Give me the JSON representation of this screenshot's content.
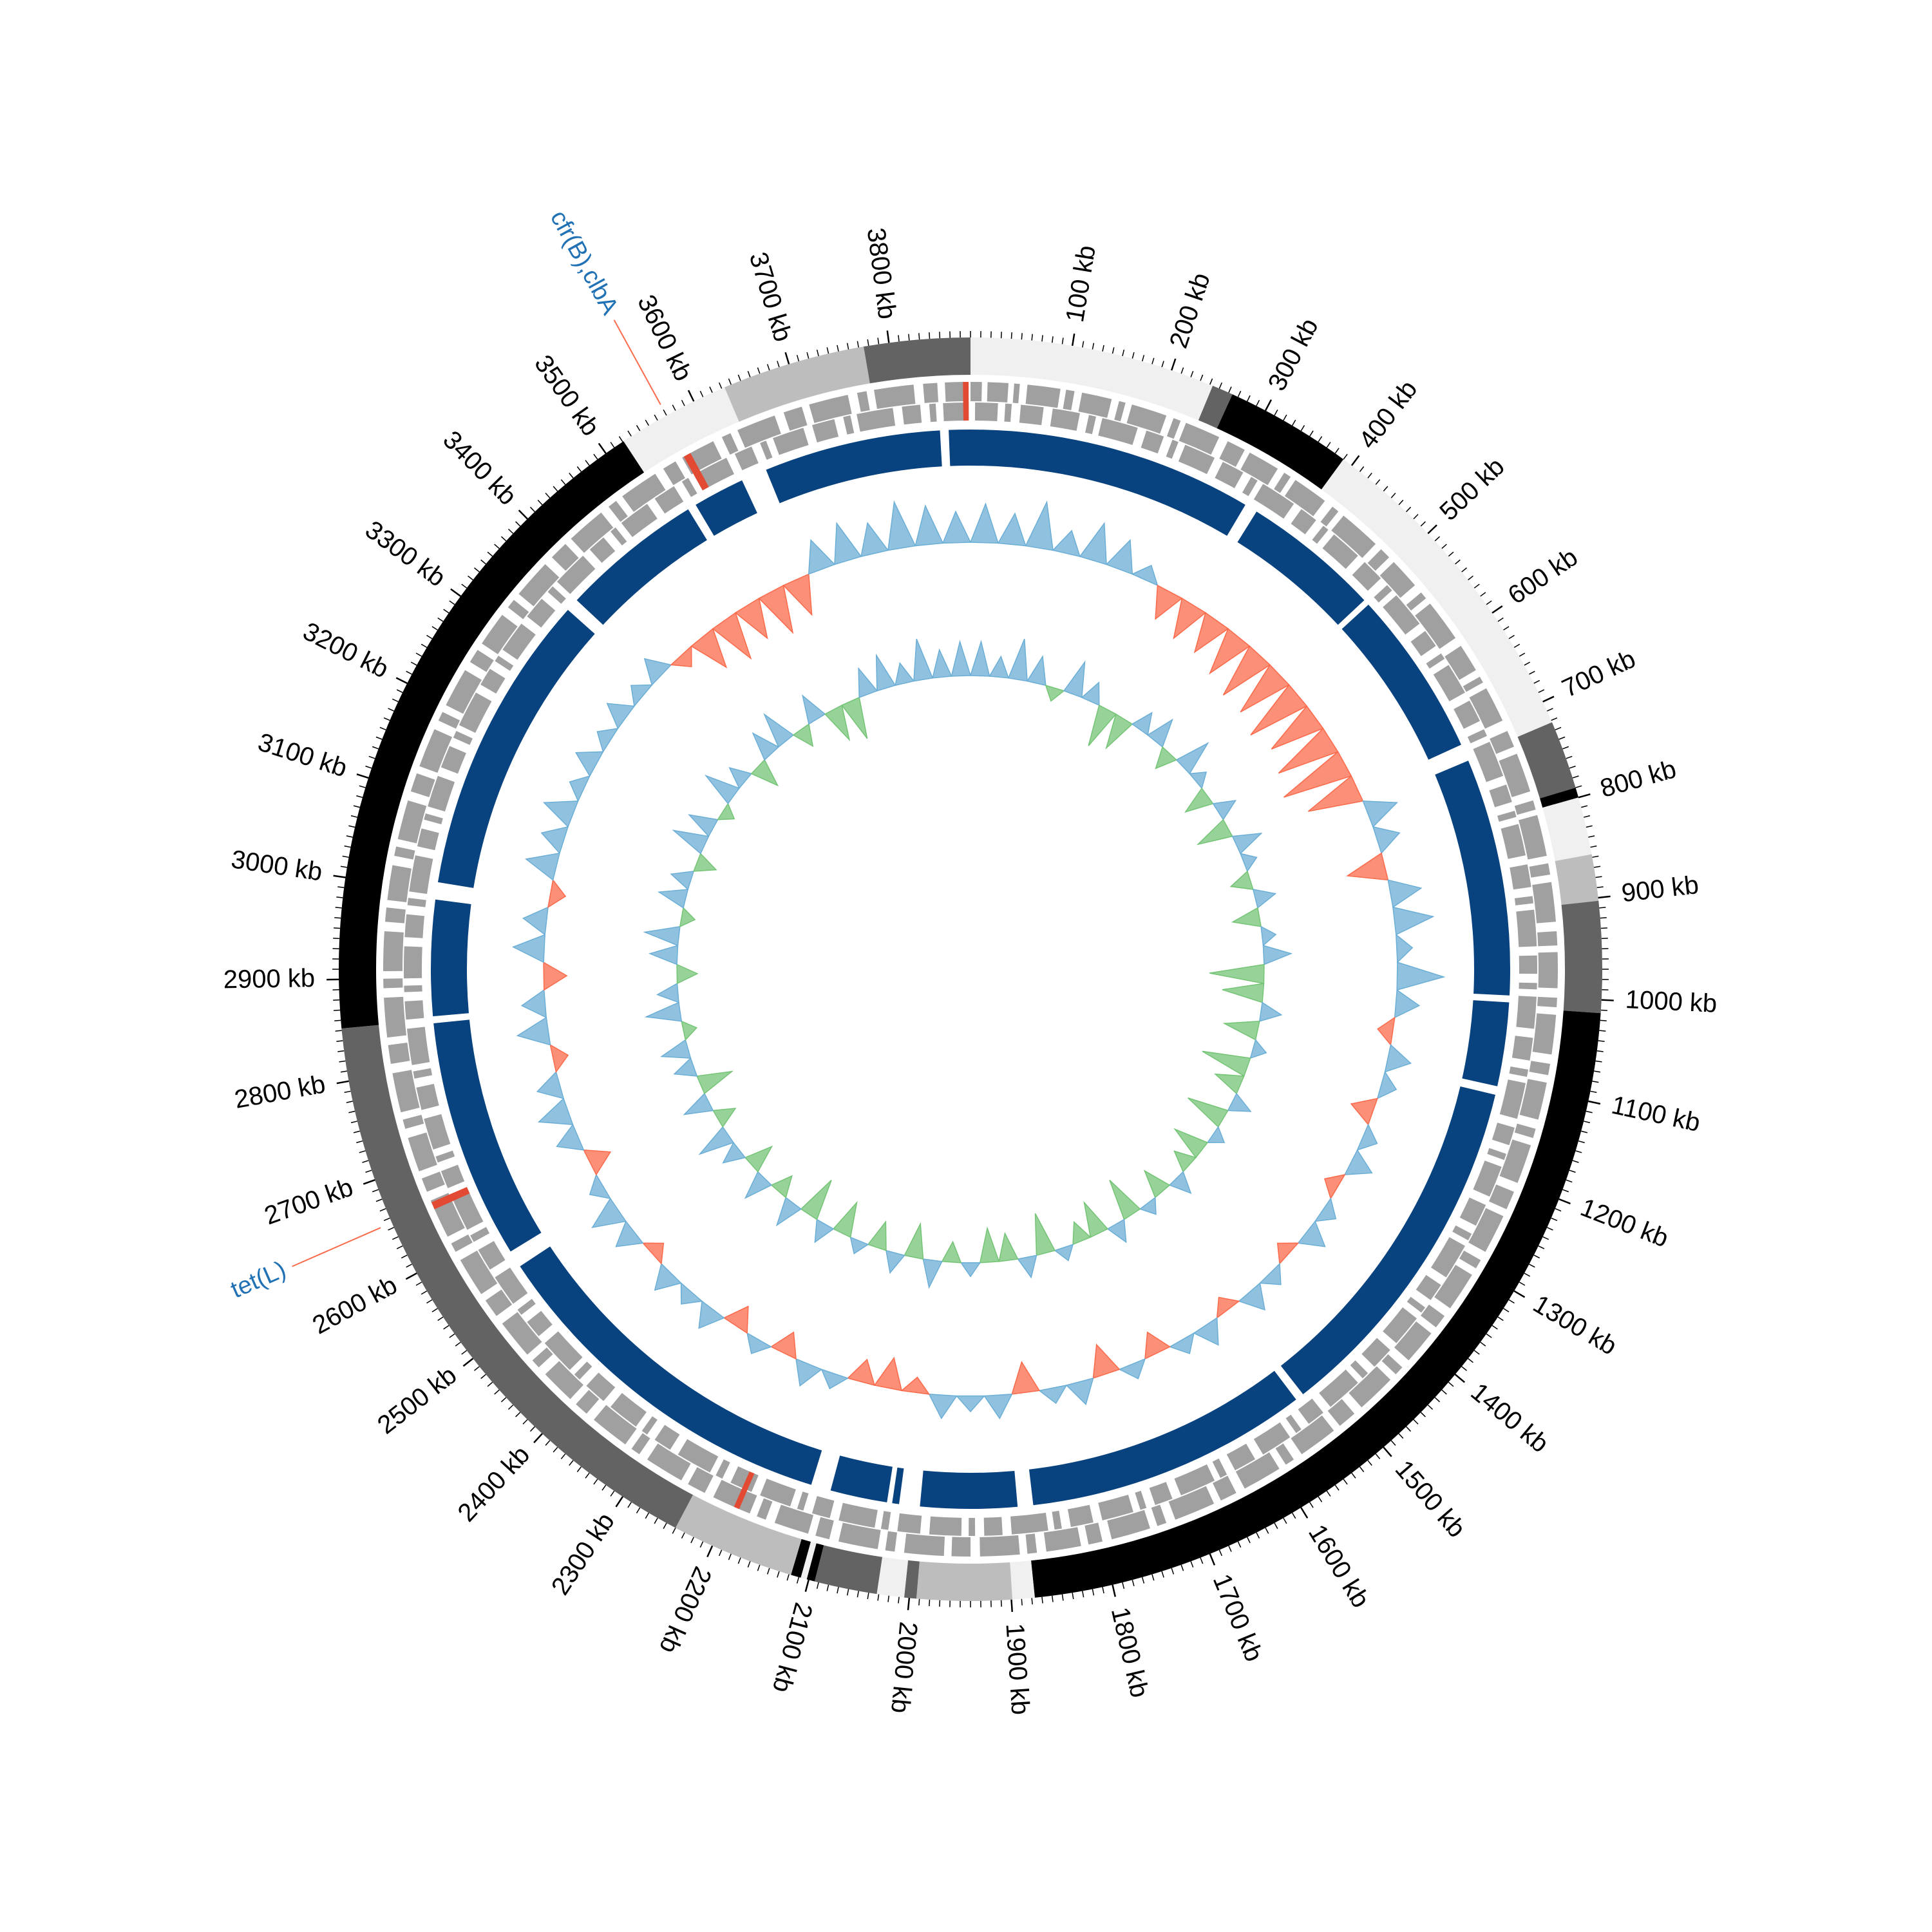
{
  "chart_data": {
    "type": "circular-genome",
    "xlim": [
      0,
      3880
    ],
    "ticks": [
      {
        "value": 100,
        "label": "100 kb"
      },
      {
        "value": 200,
        "label": "200 kb"
      },
      {
        "value": 300,
        "label": "300 kb"
      },
      {
        "value": 400,
        "label": "400 kb"
      },
      {
        "value": 500,
        "label": "500 kb"
      },
      {
        "value": 600,
        "label": "600 kb"
      },
      {
        "value": 700,
        "label": "700 kb"
      },
      {
        "value": 800,
        "label": "800 kb"
      },
      {
        "value": 900,
        "label": "900 kb"
      },
      {
        "value": 1000,
        "label": "1000 kb"
      },
      {
        "value": 1100,
        "label": "1100 kb"
      },
      {
        "value": 1200,
        "label": "1200 kb"
      },
      {
        "value": 1300,
        "label": "1300 kb"
      },
      {
        "value": 1400,
        "label": "1400 kb"
      },
      {
        "value": 1500,
        "label": "1500 kb"
      },
      {
        "value": 1600,
        "label": "1600 kb"
      },
      {
        "value": 1700,
        "label": "1700 kb"
      },
      {
        "value": 1800,
        "label": "1800 kb"
      },
      {
        "value": 1900,
        "label": "1900 kb"
      },
      {
        "value": 2000,
        "label": "2000 kb"
      },
      {
        "value": 2100,
        "label": "2100 kb"
      },
      {
        "value": 2200,
        "label": "2200 kb"
      },
      {
        "value": 2300,
        "label": "2300 kb"
      },
      {
        "value": 2400,
        "label": "2400 kb"
      },
      {
        "value": 2500,
        "label": "2500 kb"
      },
      {
        "value": 2600,
        "label": "2600 kb"
      },
      {
        "value": 2700,
        "label": "2700 kb"
      },
      {
        "value": 2800,
        "label": "2800 kb"
      },
      {
        "value": 2900,
        "label": "2900 kb"
      },
      {
        "value": 3000,
        "label": "3000 kb"
      },
      {
        "value": 3100,
        "label": "3100 kb"
      },
      {
        "value": 3200,
        "label": "3200 kb"
      },
      {
        "value": 3300,
        "label": "3300 kb"
      },
      {
        "value": 3400,
        "label": "3400 kb"
      },
      {
        "value": 3500,
        "label": "3500 kb"
      },
      {
        "value": 3600,
        "label": "3600 kb"
      },
      {
        "value": 3700,
        "label": "3700 kb"
      },
      {
        "value": 3800,
        "label": "3800 kb"
      }
    ],
    "minor_tick_step": 10,
    "contigs": [
      {
        "start": 0,
        "end": 243,
        "color": "#f0f0f0"
      },
      {
        "start": 243,
        "end": 264,
        "color": "#636363"
      },
      {
        "start": 264,
        "end": 390,
        "color": "#000000"
      },
      {
        "start": 390,
        "end": 722,
        "color": "#f0f0f0"
      },
      {
        "start": 722,
        "end": 790,
        "color": "#636363"
      },
      {
        "start": 790,
        "end": 800,
        "color": "#000000"
      },
      {
        "start": 800,
        "end": 857,
        "color": "#f0f0f0"
      },
      {
        "start": 857,
        "end": 903,
        "color": "#bdbdbd"
      },
      {
        "start": 903,
        "end": 1013,
        "color": "#636363"
      },
      {
        "start": 1013,
        "end": 1877,
        "color": "#000000"
      },
      {
        "start": 1877,
        "end": 1899,
        "color": "#f0f0f0"
      },
      {
        "start": 1899,
        "end": 1993,
        "color": "#bdbdbd"
      },
      {
        "start": 1993,
        "end": 2005,
        "color": "#636363"
      },
      {
        "start": 2005,
        "end": 2032,
        "color": "#f0f0f0"
      },
      {
        "start": 2032,
        "end": 2094,
        "color": "#636363"
      },
      {
        "start": 2094,
        "end": 2102,
        "color": "#000000"
      },
      {
        "start": 2102,
        "end": 2108,
        "color": "#f0f0f0"
      },
      {
        "start": 2108,
        "end": 2118,
        "color": "#000000"
      },
      {
        "start": 2118,
        "end": 2240,
        "color": "#bdbdbd"
      },
      {
        "start": 2240,
        "end": 2852,
        "color": "#636363"
      },
      {
        "start": 2852,
        "end": 3521,
        "color": "#000000"
      },
      {
        "start": 3521,
        "end": 3633,
        "color": "#f0f0f0"
      },
      {
        "start": 3633,
        "end": 3775,
        "color": "#bdbdbd"
      },
      {
        "start": 3775,
        "end": 3880,
        "color": "#636363"
      }
    ],
    "gene_color": "#a0a0a0",
    "genes_forward": [
      [
        0,
        12
      ],
      [
        18,
        40
      ],
      [
        46,
        52
      ],
      [
        60,
        95
      ],
      [
        101,
        110
      ],
      [
        118,
        150
      ],
      [
        158,
        165
      ],
      [
        172,
        210
      ],
      [
        218,
        226
      ],
      [
        232,
        270
      ],
      [
        280,
        300
      ],
      [
        306,
        340
      ],
      [
        348,
        356
      ],
      [
        362,
        400
      ],
      [
        410,
        418
      ],
      [
        425,
        470
      ],
      [
        478,
        490
      ],
      [
        497,
        530
      ],
      [
        540,
        548
      ],
      [
        555,
        600
      ],
      [
        610,
        640
      ],
      [
        648,
        655
      ],
      [
        662,
        700
      ],
      [
        712,
        730
      ],
      [
        738,
        780
      ],
      [
        790,
        800
      ],
      [
        806,
        850
      ],
      [
        858,
        870
      ],
      [
        878,
        920
      ],
      [
        930,
        945
      ],
      [
        952,
        990
      ],
      [
        1000,
        1010
      ],
      [
        1018,
        1060
      ],
      [
        1070,
        1082
      ],
      [
        1090,
        1130
      ],
      [
        1140,
        1150
      ],
      [
        1158,
        1200
      ],
      [
        1210,
        1230
      ],
      [
        1238,
        1280
      ],
      [
        1290,
        1300
      ],
      [
        1308,
        1350
      ],
      [
        1360,
        1375
      ],
      [
        1383,
        1420
      ],
      [
        1430,
        1440
      ],
      [
        1448,
        1490
      ],
      [
        1500,
        1520
      ],
      [
        1528,
        1570
      ],
      [
        1580,
        1590
      ],
      [
        1598,
        1640
      ],
      [
        1650,
        1668
      ],
      [
        1676,
        1720
      ],
      [
        1730,
        1740
      ],
      [
        1748,
        1790
      ],
      [
        1800,
        1815
      ],
      [
        1823,
        1860
      ],
      [
        1870,
        1880
      ],
      [
        1888,
        1930
      ],
      [
        1940,
        1960
      ],
      [
        1968,
        2010
      ],
      [
        2020,
        2030
      ],
      [
        2038,
        2080
      ],
      [
        2090,
        2105
      ],
      [
        2113,
        2150
      ],
      [
        2160,
        2170
      ],
      [
        2178,
        2220
      ],
      [
        2230,
        2250
      ],
      [
        2258,
        2300
      ],
      [
        2310,
        2320
      ],
      [
        2328,
        2370
      ],
      [
        2380,
        2395
      ],
      [
        2403,
        2440
      ],
      [
        2450,
        2460
      ],
      [
        2468,
        2510
      ],
      [
        2520,
        2540
      ],
      [
        2548,
        2590
      ],
      [
        2600,
        2610
      ],
      [
        2618,
        2660
      ],
      [
        2670,
        2685
      ],
      [
        2693,
        2730
      ],
      [
        2740,
        2750
      ],
      [
        2758,
        2800
      ],
      [
        2810,
        2830
      ],
      [
        2838,
        2880
      ],
      [
        2890,
        2900
      ],
      [
        2908,
        2950
      ],
      [
        2960,
        2975
      ],
      [
        2983,
        3020
      ],
      [
        3030,
        3040
      ],
      [
        3048,
        3090
      ],
      [
        3100,
        3120
      ],
      [
        3128,
        3170
      ],
      [
        3180,
        3190
      ],
      [
        3198,
        3240
      ],
      [
        3250,
        3265
      ],
      [
        3273,
        3310
      ],
      [
        3320,
        3330
      ],
      [
        3338,
        3380
      ],
      [
        3390,
        3410
      ],
      [
        3418,
        3460
      ],
      [
        3470,
        3480
      ],
      [
        3488,
        3530
      ],
      [
        3540,
        3555
      ],
      [
        3563,
        3600
      ],
      [
        3610,
        3620
      ],
      [
        3628,
        3670
      ],
      [
        3680,
        3700
      ],
      [
        3708,
        3750
      ],
      [
        3760,
        3770
      ],
      [
        3778,
        3820
      ],
      [
        3830,
        3845
      ],
      [
        3853,
        3875
      ]
    ],
    "genes_reverse": [
      [
        5,
        30
      ],
      [
        38,
        45
      ],
      [
        55,
        80
      ],
      [
        90,
        120
      ],
      [
        130,
        138
      ],
      [
        145,
        185
      ],
      [
        195,
        215
      ],
      [
        225,
        232
      ],
      [
        240,
        275
      ],
      [
        285,
        310
      ],
      [
        320,
        328
      ],
      [
        335,
        375
      ],
      [
        385,
        405
      ],
      [
        415,
        422
      ],
      [
        430,
        465
      ],
      [
        475,
        500
      ],
      [
        510,
        518
      ],
      [
        525,
        565
      ],
      [
        575,
        595
      ],
      [
        605,
        612
      ],
      [
        620,
        655
      ],
      [
        665,
        690
      ],
      [
        700,
        708
      ],
      [
        715,
        755
      ],
      [
        765,
        785
      ],
      [
        795,
        802
      ],
      [
        810,
        845
      ],
      [
        855,
        880
      ],
      [
        890,
        898
      ],
      [
        905,
        945
      ],
      [
        955,
        975
      ],
      [
        985,
        992
      ],
      [
        1000,
        1035
      ],
      [
        1045,
        1070
      ],
      [
        1080,
        1088
      ],
      [
        1095,
        1135
      ],
      [
        1145,
        1165
      ],
      [
        1175,
        1182
      ],
      [
        1190,
        1225
      ],
      [
        1235,
        1260
      ],
      [
        1270,
        1278
      ],
      [
        1285,
        1325
      ],
      [
        1335,
        1355
      ],
      [
        1365,
        1372
      ],
      [
        1380,
        1415
      ],
      [
        1425,
        1450
      ],
      [
        1460,
        1468
      ],
      [
        1475,
        1515
      ],
      [
        1525,
        1545
      ],
      [
        1555,
        1562
      ],
      [
        1570,
        1605
      ],
      [
        1615,
        1640
      ],
      [
        1650,
        1658
      ],
      [
        1665,
        1705
      ],
      [
        1715,
        1735
      ],
      [
        1745,
        1752
      ],
      [
        1760,
        1795
      ],
      [
        1805,
        1830
      ],
      [
        1840,
        1848
      ],
      [
        1855,
        1895
      ],
      [
        1905,
        1925
      ],
      [
        1935,
        1942
      ],
      [
        1950,
        1985
      ],
      [
        1995,
        2020
      ],
      [
        2030,
        2038
      ],
      [
        2045,
        2085
      ],
      [
        2095,
        2115
      ],
      [
        2125,
        2132
      ],
      [
        2140,
        2175
      ],
      [
        2185,
        2210
      ],
      [
        2220,
        2228
      ],
      [
        2235,
        2275
      ],
      [
        2285,
        2305
      ],
      [
        2315,
        2322
      ],
      [
        2330,
        2365
      ],
      [
        2375,
        2400
      ],
      [
        2410,
        2418
      ],
      [
        2425,
        2465
      ],
      [
        2475,
        2495
      ],
      [
        2505,
        2512
      ],
      [
        2520,
        2555
      ],
      [
        2565,
        2590
      ],
      [
        2600,
        2608
      ],
      [
        2615,
        2655
      ],
      [
        2665,
        2685
      ],
      [
        2695,
        2702
      ],
      [
        2710,
        2745
      ],
      [
        2755,
        2780
      ],
      [
        2790,
        2798
      ],
      [
        2805,
        2845
      ],
      [
        2855,
        2875
      ],
      [
        2885,
        2892
      ],
      [
        2900,
        2935
      ],
      [
        2945,
        2970
      ],
      [
        2980,
        2988
      ],
      [
        2995,
        3035
      ],
      [
        3045,
        3065
      ],
      [
        3075,
        3082
      ],
      [
        3090,
        3125
      ],
      [
        3135,
        3160
      ],
      [
        3170,
        3178
      ],
      [
        3185,
        3225
      ],
      [
        3235,
        3255
      ],
      [
        3265,
        3272
      ],
      [
        3280,
        3315
      ],
      [
        3325,
        3350
      ],
      [
        3360,
        3368
      ],
      [
        3375,
        3415
      ],
      [
        3425,
        3445
      ],
      [
        3455,
        3462
      ],
      [
        3470,
        3505
      ],
      [
        3515,
        3540
      ],
      [
        3550,
        3558
      ],
      [
        3565,
        3605
      ],
      [
        3615,
        3635
      ],
      [
        3645,
        3652
      ],
      [
        3660,
        3695
      ],
      [
        3705,
        3730
      ],
      [
        3740,
        3748
      ],
      [
        3755,
        3795
      ],
      [
        3805,
        3825
      ],
      [
        3835,
        3842
      ],
      [
        3850,
        3878
      ]
    ],
    "highlight_gene_color": "#e34a33",
    "highlight_genes": [
      [
        3565,
        3573
      ],
      [
        2650,
        2658
      ],
      [
        2190,
        2196
      ],
      [
        3872,
        3878
      ]
    ],
    "homology_color": "#08427f",
    "homology_blocks": [
      [
        0,
        330
      ],
      [
        345,
        505
      ],
      [
        512,
        705
      ],
      [
        725,
        1000
      ],
      [
        1008,
        1105
      ],
      [
        1115,
        1530
      ],
      [
        1540,
        1868
      ],
      [
        1886,
        1998
      ],
      [
        2022,
        2030
      ],
      [
        2036,
        2102
      ],
      [
        2125,
        2550
      ],
      [
        2570,
        2848
      ],
      [
        2856,
        2990
      ],
      [
        3010,
        3360
      ],
      [
        3375,
        3540
      ],
      [
        3550,
        3610
      ],
      [
        3640,
        3845
      ],
      [
        3855,
        3880
      ]
    ],
    "gc_content": {
      "bin_kb": 40,
      "ylim": [
        -0.1,
        0.1
      ],
      "positive_color": "#6baed6",
      "negative_color": "#fb6a4a",
      "values": [
        0.05,
        0.04,
        0.06,
        0.03,
        0.05,
        0.04,
        0.02,
        -0.04,
        -0.05,
        -0.05,
        -0.06,
        -0.07,
        -0.07,
        -0.08,
        -0.07,
        -0.08,
        -0.09,
        -0.07,
        0.04,
        0.03,
        -0.05,
        0.04,
        0.05,
        0.02,
        0.06,
        0.03,
        -0.02,
        0.03,
        0.02,
        -0.03,
        0.02,
        0.03,
        -0.02,
        0.02,
        0.03,
        -0.02,
        0.02,
        0.03,
        -0.02,
        0.03,
        0.02,
        -0.03,
        0.02,
        -0.04,
        0.03,
        0.02,
        -0.04,
        0.03,
        0.02,
        0.03,
        -0.02,
        -0.04,
        -0.03,
        0.02,
        0.03,
        -0.03,
        0.02,
        -0.03,
        0.03,
        0.02,
        0.03,
        -0.02,
        0.03,
        0.04,
        0.02,
        -0.03,
        0.03,
        0.04,
        0.03,
        -0.02,
        0.04,
        0.03,
        -0.03,
        0.04,
        0.03,
        -0.02,
        0.04,
        0.03,
        0.04,
        0.02,
        0.03,
        0.02,
        0.03,
        0.02,
        0.03,
        -0.02,
        -0.05,
        -0.06,
        -0.05,
        -0.06,
        -0.05,
        0.04,
        0.05,
        0.04,
        0.06,
        0.05,
        0.04
      ]
    },
    "gc_skew": {
      "bin_kb": 40,
      "ylim": [
        -0.1,
        0.1
      ],
      "positive_color": "#6baed6",
      "negative_color": "#74c476",
      "values": [
        0.05,
        0.03,
        0.06,
        0.04,
        -0.02,
        0.05,
        0.03,
        -0.06,
        -0.05,
        0.03,
        0.04,
        -0.03,
        0.05,
        0.02,
        -0.04,
        0.03,
        -0.05,
        0.04,
        0.02,
        -0.03,
        0.03,
        -0.04,
        0.02,
        0.04,
        -0.08,
        -0.06,
        0.03,
        -0.05,
        0.02,
        -0.07,
        -0.04,
        0.03,
        -0.06,
        0.02,
        -0.05,
        -0.03,
        0.03,
        -0.04,
        0.02,
        -0.06,
        0.03,
        -0.05,
        -0.03,
        0.02,
        -0.06,
        0.03,
        -0.04,
        -0.05,
        0.02,
        -0.03,
        0.04,
        -0.05,
        0.03,
        -0.04,
        0.02,
        -0.05,
        0.03,
        -0.06,
        0.04,
        -0.03,
        0.04,
        -0.04,
        0.03,
        0.05,
        -0.03,
        0.04,
        -0.05,
        0.03,
        0.04,
        -0.02,
        0.05,
        0.03,
        -0.03,
        0.04,
        0.05,
        -0.02,
        0.04,
        0.03,
        -0.03,
        0.05,
        0.04,
        -0.02,
        0.05,
        0.03,
        -0.04,
        0.04,
        0.05,
        -0.03,
        0.04,
        -0.05,
        -0.06,
        0.04,
        0.05,
        0.03,
        0.06,
        0.04,
        0.05
      ]
    },
    "annotation_text_color": "#2171b5",
    "annotation_line_color": "#fb6a4a",
    "annotations": [
      {
        "label": "cfr(B),clbA",
        "position": 3570
      },
      {
        "label": "tet(L)",
        "position": 2655
      }
    ]
  }
}
